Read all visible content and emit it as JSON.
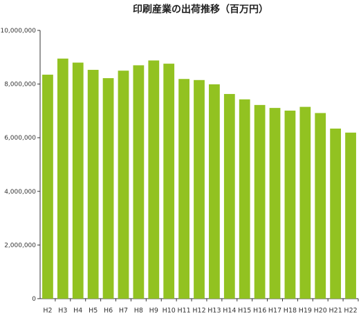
{
  "chart_data": {
    "type": "bar",
    "title": "印刷産業の出荷推移（百万円）",
    "xlabel": "",
    "ylabel": "",
    "categories": [
      "H2",
      "H3",
      "H4",
      "H5",
      "H6",
      "H7",
      "H8",
      "H9",
      "H10",
      "H11",
      "H12",
      "H13",
      "H14",
      "H15",
      "H16",
      "H17",
      "H18",
      "H19",
      "H20",
      "H21",
      "H22"
    ],
    "values": [
      8350000,
      8950000,
      8800000,
      8530000,
      8220000,
      8500000,
      8700000,
      8880000,
      8760000,
      8190000,
      8150000,
      7990000,
      7630000,
      7430000,
      7220000,
      7110000,
      7010000,
      7150000,
      6920000,
      6340000,
      6190000
    ],
    "ylim": [
      0,
      10000000
    ],
    "yticks": [
      0,
      2000000,
      4000000,
      6000000,
      8000000,
      10000000
    ],
    "ytick_labels": [
      "0",
      "2,000,000",
      "4,000,000",
      "6,000,000",
      "8,000,000",
      "10,000,000"
    ],
    "grid": false,
    "legend": "none",
    "bar_color": "#92c221",
    "axis_color": "#333333"
  }
}
